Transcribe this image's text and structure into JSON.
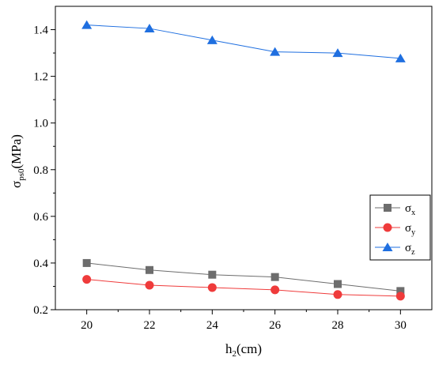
{
  "chart_data": {
    "type": "line",
    "x": [
      20,
      22,
      24,
      26,
      28,
      30
    ],
    "series": [
      {
        "name": "σx",
        "name_main": "σ",
        "name_sub": "x",
        "color": "#6d6d6d",
        "marker": "square",
        "values": [
          0.4,
          0.37,
          0.35,
          0.34,
          0.31,
          0.28
        ]
      },
      {
        "name": "σy",
        "name_main": "σ",
        "name_sub": "y",
        "color": "#ef3b3b",
        "marker": "circle",
        "values": [
          0.33,
          0.305,
          0.295,
          0.285,
          0.265,
          0.258
        ]
      },
      {
        "name": "σz",
        "name_main": "σ",
        "name_sub": "z",
        "color": "#1f6fe0",
        "marker": "triangle",
        "values": [
          1.42,
          1.405,
          1.355,
          1.305,
          1.3,
          1.277
        ]
      }
    ],
    "xlabel": {
      "main": "h",
      "sub": "2",
      "tail": "(cm)"
    },
    "ylabel": {
      "main": "σ",
      "sub": "ps0",
      "tail": "(MPa)"
    },
    "xlim": [
      19,
      31
    ],
    "ylim": [
      0.2,
      1.5
    ],
    "xticks": [
      "20",
      "22",
      "24",
      "26",
      "28",
      "30"
    ],
    "yticks": [
      "0.2",
      "0.4",
      "0.6",
      "0.8",
      "1.0",
      "1.2",
      "1.4"
    ],
    "grid": false,
    "legend_position": "right-lower"
  }
}
